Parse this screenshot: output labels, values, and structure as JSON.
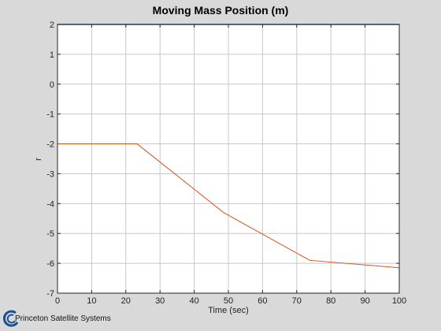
{
  "chart_data": {
    "type": "line",
    "title": "Moving Mass Position (m)",
    "xlabel": "Time (sec)",
    "ylabel": "r",
    "xlim": [
      0,
      100
    ],
    "ylim": [
      -7,
      2
    ],
    "xticks": [
      0,
      10,
      20,
      30,
      40,
      50,
      60,
      70,
      80,
      90,
      100
    ],
    "yticks": [
      2,
      1,
      0,
      -1,
      -2,
      -3,
      -4,
      -5,
      -6,
      -7
    ],
    "grid": true,
    "series": [
      {
        "color": "#d95319",
        "x": [
          0,
          23.3,
          48.6,
          73.8,
          100
        ],
        "y": [
          -2.0,
          -2.0,
          -4.3,
          -5.9,
          -6.15
        ]
      },
      {
        "color": "#0072bd",
        "x": [
          0,
          100
        ],
        "y": [
          2,
          2
        ]
      }
    ]
  },
  "branding": {
    "company": "Princeton Satellite Systems"
  }
}
